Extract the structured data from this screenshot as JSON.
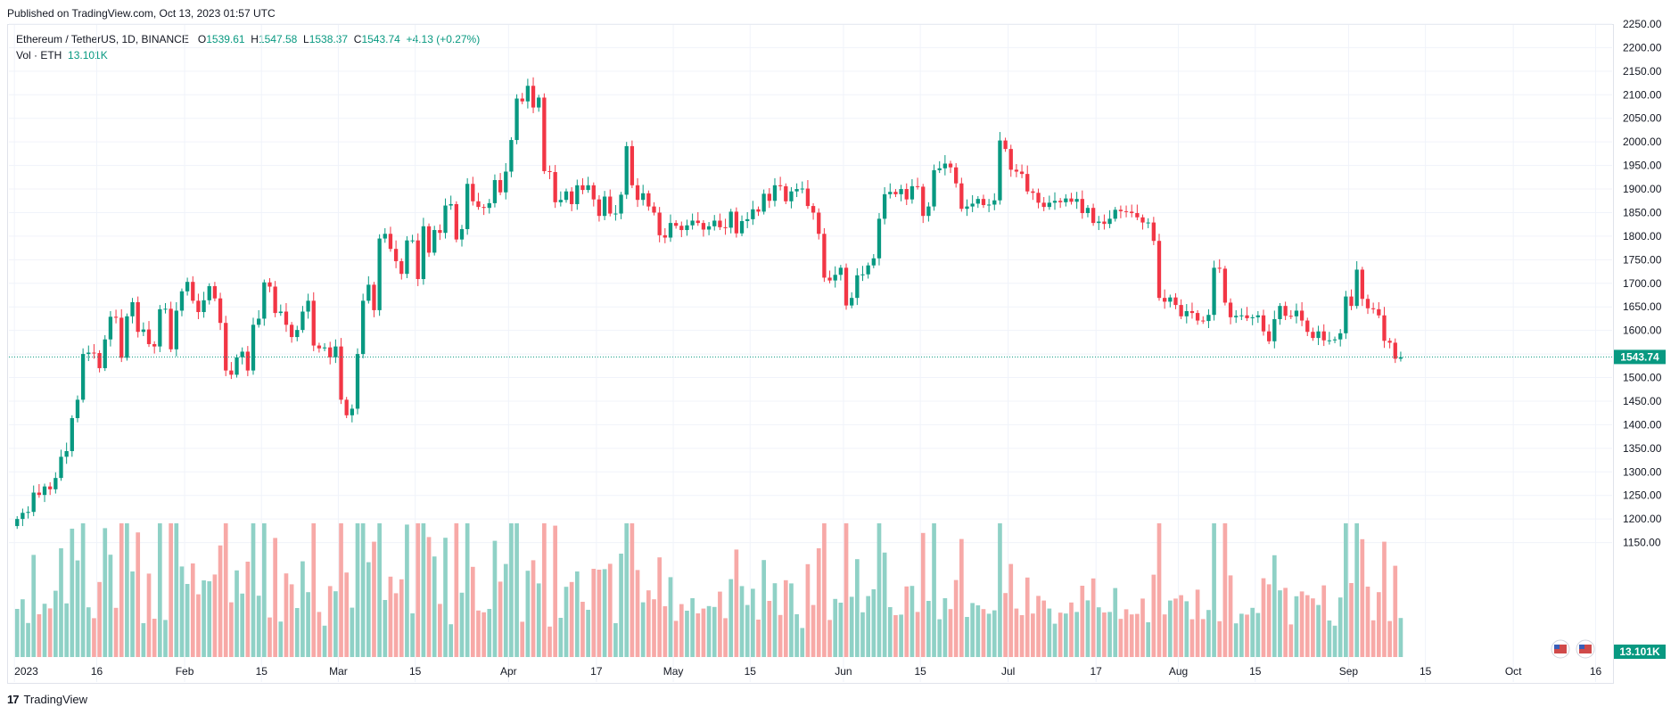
{
  "header": {
    "published": "Published on TradingView.com, Oct 13, 2023 01:57 UTC"
  },
  "legend": {
    "symbol": "Ethereum / TetherUS, 1D, BINANCE",
    "o_label": "O",
    "o_value": "1539.61",
    "h_label": "H",
    "h_value": "1547.58",
    "l_label": "L",
    "l_value": "1538.37",
    "c_label": "C",
    "c_value": "1543.74",
    "change": "+4.13 (+0.27%)",
    "vol_label": "Vol · ETH",
    "vol_value": "13.101K"
  },
  "footer": {
    "brand": "TradingView",
    "logo_glyph": "17"
  },
  "colors": {
    "up": "#089981",
    "down": "#f23645",
    "vol_up": "#8fd1c6",
    "vol_down": "#f7a9a7",
    "grid": "#f0f3fa"
  },
  "chart_data": {
    "type": "candlestick",
    "price_axis": {
      "min": 1100,
      "max": 2250,
      "step": 50,
      "tick_labels": [
        "1150.00",
        "1200.00",
        "1250.00",
        "1300.00",
        "1350.00",
        "1400.00",
        "1450.00",
        "1500.00",
        "1550.00",
        "1600.00",
        "1650.00",
        "1700.00",
        "1750.00",
        "1800.00",
        "1850.00",
        "1900.00",
        "1950.00",
        "2000.00",
        "2050.00",
        "2100.00",
        "2150.00",
        "2200.00",
        "2250.00"
      ]
    },
    "time_axis": {
      "start": "2022-12-31",
      "end": "2023-10-19",
      "ticks": [
        {
          "label": "2023",
          "date": "2023-01-01"
        },
        {
          "label": "16",
          "date": "2023-01-16"
        },
        {
          "label": "Feb",
          "date": "2023-02-01"
        },
        {
          "label": "15",
          "date": "2023-02-15"
        },
        {
          "label": "Mar",
          "date": "2023-03-01"
        },
        {
          "label": "15",
          "date": "2023-03-15"
        },
        {
          "label": "Apr",
          "date": "2023-04-01"
        },
        {
          "label": "17",
          "date": "2023-04-17"
        },
        {
          "label": "May",
          "date": "2023-05-01"
        },
        {
          "label": "15",
          "date": "2023-05-15"
        },
        {
          "label": "Jun",
          "date": "2023-06-01"
        },
        {
          "label": "15",
          "date": "2023-06-15"
        },
        {
          "label": "Jul",
          "date": "2023-07-01"
        },
        {
          "label": "17",
          "date": "2023-07-17"
        },
        {
          "label": "Aug",
          "date": "2023-08-01"
        },
        {
          "label": "15",
          "date": "2023-08-15"
        },
        {
          "label": "Sep",
          "date": "2023-09-01"
        },
        {
          "label": "15",
          "date": "2023-09-15"
        },
        {
          "label": "Oct",
          "date": "2023-10-01"
        },
        {
          "label": "16",
          "date": "2023-10-16"
        }
      ]
    },
    "last_price": {
      "value": 1543.74,
      "label": "1543.74"
    },
    "last_volume": {
      "label": "13.101K"
    },
    "start_date": "2023-01-01",
    "closes": [
      1200,
      1213,
      1215,
      1256,
      1251,
      1269,
      1263,
      1287,
      1332,
      1344,
      1414,
      1453,
      1550,
      1553,
      1552,
      1520,
      1581,
      1629,
      1627,
      1542,
      1630,
      1660,
      1597,
      1602,
      1571,
      1566,
      1645,
      1646,
      1560,
      1642,
      1683,
      1703,
      1663,
      1639,
      1664,
      1694,
      1668,
      1616,
      1515,
      1506,
      1543,
      1555,
      1515,
      1612,
      1625,
      1702,
      1693,
      1637,
      1640,
      1612,
      1586,
      1601,
      1640,
      1663,
      1568,
      1562,
      1564,
      1543,
      1566,
      1453,
      1420,
      1434,
      1550,
      1663,
      1697,
      1643,
      1795,
      1805,
      1773,
      1747,
      1720,
      1791,
      1791,
      1709,
      1821,
      1765,
      1813,
      1807,
      1865,
      1868,
      1793,
      1815,
      1911,
      1874,
      1862,
      1860,
      1870,
      1919,
      1893,
      1937,
      2004,
      2092,
      2086,
      2119,
      2073,
      2094,
      1938,
      1936,
      1872,
      1877,
      1895,
      1868,
      1908,
      1898,
      1908,
      1878,
      1843,
      1884,
      1848,
      1848,
      1888,
      1991,
      1908,
      1877,
      1891,
      1863,
      1850,
      1802,
      1797,
      1828,
      1822,
      1813,
      1823,
      1833,
      1828,
      1814,
      1821,
      1833,
      1819,
      1818,
      1852,
      1806,
      1832,
      1836,
      1857,
      1852,
      1890,
      1875,
      1908,
      1906,
      1874,
      1895,
      1900,
      1901,
      1864,
      1850,
      1805,
      1712,
      1706,
      1718,
      1733,
      1653,
      1669,
      1717,
      1719,
      1738,
      1753,
      1837,
      1889,
      1894,
      1889,
      1900,
      1878,
      1906,
      1905,
      1843,
      1863,
      1940,
      1944,
      1954,
      1946,
      1912,
      1858,
      1863,
      1869,
      1879,
      1866,
      1867,
      1876,
      2003,
      1985,
      1941,
      1937,
      1932,
      1895,
      1892,
      1871,
      1862,
      1871,
      1875,
      1872,
      1880,
      1873,
      1879,
      1849,
      1860,
      1828,
      1831,
      1826,
      1837,
      1856,
      1853,
      1852,
      1849,
      1840,
      1829,
      1829,
      1790,
      1669,
      1661,
      1670,
      1654,
      1630,
      1641,
      1637,
      1621,
      1620,
      1633,
      1733,
      1731,
      1659,
      1628,
      1631,
      1632,
      1626,
      1628,
      1632,
      1598,
      1577,
      1624,
      1652,
      1631,
      1630,
      1642,
      1621,
      1597,
      1584,
      1598,
      1579,
      1579,
      1581,
      1594,
      1672,
      1652,
      1729,
      1667,
      1647,
      1645,
      1632,
      1578,
      1574,
      1540,
      1543
    ],
    "ylabel": "",
    "xlabel": "",
    "legend": "top-left"
  }
}
